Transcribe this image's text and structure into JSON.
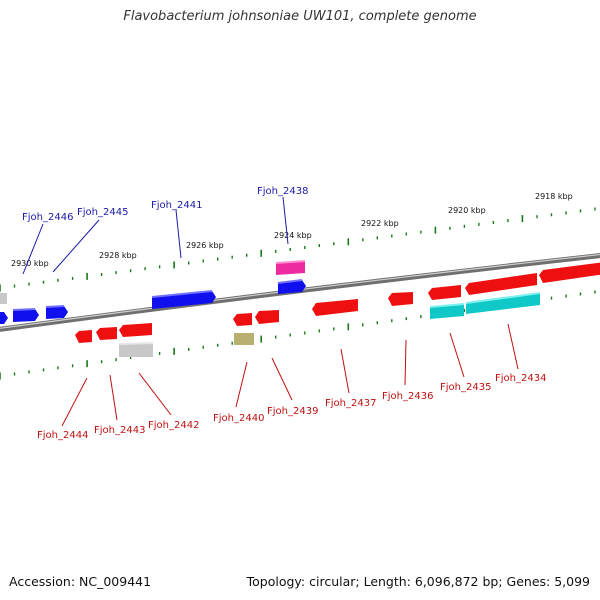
{
  "title": "Flavobacterium johnsoniae UW101, complete genome",
  "footer": {
    "accession": "Accession: NC_009441",
    "summary": "Topology: circular; Length: 6,096,872 bp; Genes: 5,099"
  },
  "colors": {
    "backbone": "#8a8a8a",
    "tick": "#1a7a1a",
    "forward_label": "#1a1aa8",
    "reverse_label": "#c01010",
    "gene_blue": "#1010ee",
    "gene_red": "#ee1010",
    "gene_cyan": "#10c8c8",
    "gene_magenta": "#ee2aa0",
    "gene_grey": "#c8c8c8",
    "gene_khaki": "#b8b070"
  },
  "scale_labels": [
    "2930 kbp",
    "2928 kbp",
    "2926 kbp",
    "2924 kbp",
    "2922 kbp",
    "2920 kbp",
    "2918 kbp"
  ],
  "forward_gene_labels": [
    "Fjoh_2446",
    "Fjoh_2445",
    "Fjoh_2441",
    "Fjoh_2438"
  ],
  "reverse_gene_labels": [
    "Fjoh_2444",
    "Fjoh_2443",
    "Fjoh_2442",
    "Fjoh_2440",
    "Fjoh_2439",
    "Fjoh_2437",
    "Fjoh_2436",
    "Fjoh_2435",
    "Fjoh_2434"
  ]
}
